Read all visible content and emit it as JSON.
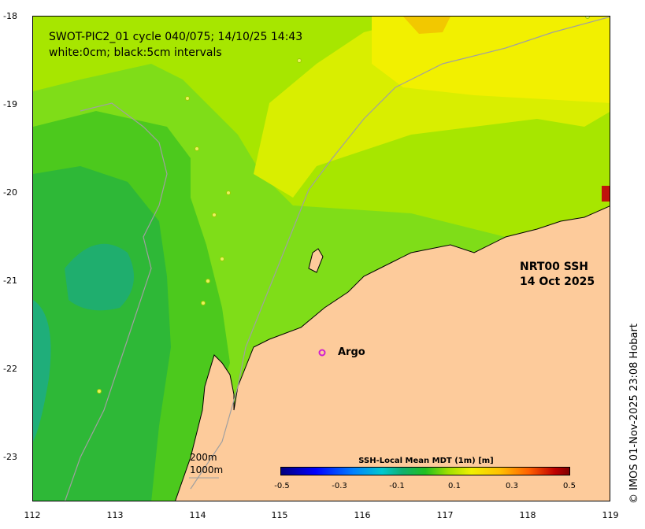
{
  "title": {
    "line1": "SWOT-PIC2_01 cycle 040/075; 14/10/25 14:43",
    "line2": "white:0cm; black:5cm intervals"
  },
  "product": {
    "line1": "NRT00 SSH",
    "line2": "14 Oct 2025"
  },
  "argo_label": "Argo",
  "scale": {
    "label1": "200m",
    "label2": "1000m"
  },
  "credit": "© IMOS 01-Nov-2025 23:08 Hobart",
  "colorbar": {
    "title": "SSH-Local Mean MDT (1m) [m]",
    "ticks": [
      "-0.5",
      "-0.3",
      "-0.1",
      "0.1",
      "0.3",
      "0.5"
    ],
    "range": [
      -0.5,
      0.5
    ]
  },
  "axes": {
    "x_ticks": [
      "112",
      "113",
      "114",
      "115",
      "116",
      "117",
      "118",
      "119"
    ],
    "y_ticks": [
      "-18",
      "-19",
      "-20",
      "-21",
      "-22",
      "-23"
    ],
    "lon_range": [
      112,
      119
    ],
    "lat_range": [
      -23.5,
      -18
    ]
  },
  "colors": {
    "land": "#fdcb9b",
    "ocean_low": "#29b873",
    "ocean_mid": "#34c21e",
    "ocean_hi": "#fbee00"
  }
}
